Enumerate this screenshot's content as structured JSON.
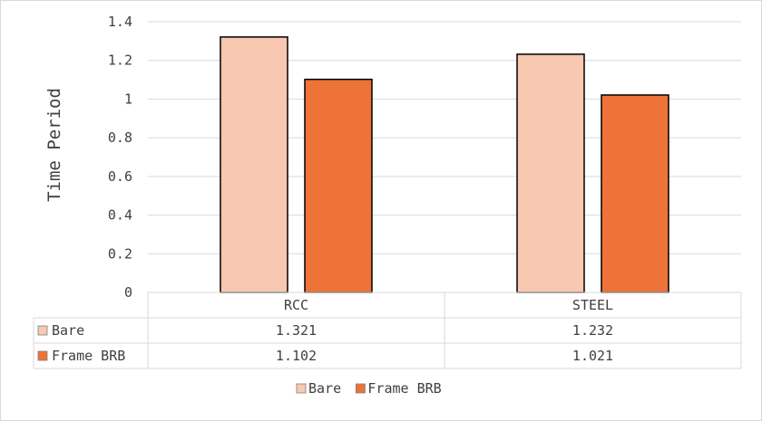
{
  "chart_data": {
    "type": "bar",
    "title": "",
    "xlabel": "",
    "ylabel": "Time Period",
    "ylim": [
      0,
      1.4
    ],
    "yticks": [
      "0",
      "0.2",
      "0.4",
      "0.6",
      "0.8",
      "1",
      "1.2",
      "1.4"
    ],
    "categories": [
      "RCC",
      "STEEL"
    ],
    "series": [
      {
        "name": "Bare",
        "values": [
          1.321,
          1.232
        ],
        "labels": [
          "1.321",
          "1.232"
        ],
        "color": "#F8C8B0"
      },
      {
        "name": "Frame BRB",
        "values": [
          1.102,
          1.021
        ],
        "labels": [
          "1.102",
          "1.021"
        ],
        "color": "#EE7338"
      }
    ],
    "grid": true,
    "legend": "bottom",
    "data_table": true
  }
}
